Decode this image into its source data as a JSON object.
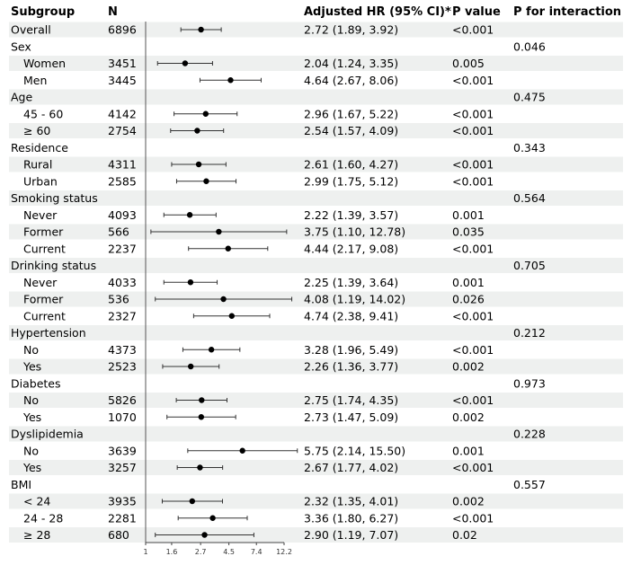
{
  "chart_data": {
    "type": "forest",
    "title": "",
    "columns": {
      "subgroup": "Subgroup",
      "n": "N",
      "hr": "Adjusted HR (95% CI)*",
      "p": "P value",
      "p_interaction": "P for interaction"
    },
    "x_scale": "log",
    "xlim": [
      1,
      12.2
    ],
    "x_ticks": [
      1,
      1.6,
      2.7,
      4.5,
      7.4,
      12.2
    ],
    "x_tick_labels": [
      "1",
      "1.6",
      "2.7",
      "4.5",
      "7.4",
      "12.2"
    ],
    "rows": [
      {
        "label": "Overall",
        "level": 0,
        "n": "6896",
        "hr": 2.72,
        "lo": 1.89,
        "hi": 3.92,
        "hr_text": "2.72 (1.89, 3.92)",
        "p": "<0.001",
        "p_int": ""
      },
      {
        "label": "Sex",
        "level": 0,
        "n": "",
        "hr": null,
        "hr_text": "",
        "p": "",
        "p_int": "0.046"
      },
      {
        "label": "Women",
        "level": 1,
        "n": "3451",
        "hr": 2.04,
        "lo": 1.24,
        "hi": 3.35,
        "hr_text": "2.04 (1.24, 3.35)",
        "p": "0.005",
        "p_int": ""
      },
      {
        "label": "Men",
        "level": 1,
        "n": "3445",
        "hr": 4.64,
        "lo": 2.67,
        "hi": 8.06,
        "hr_text": "4.64 (2.67, 8.06)",
        "p": "<0.001",
        "p_int": ""
      },
      {
        "label": "Age",
        "level": 0,
        "n": "",
        "hr": null,
        "hr_text": "",
        "p": "",
        "p_int": "0.475"
      },
      {
        "label": "45 - 60",
        "level": 1,
        "n": "4142",
        "hr": 2.96,
        "lo": 1.67,
        "hi": 5.22,
        "hr_text": "2.96 (1.67, 5.22)",
        "p": "<0.001",
        "p_int": ""
      },
      {
        "label": "≥ 60",
        "level": 1,
        "n": "2754",
        "hr": 2.54,
        "lo": 1.57,
        "hi": 4.09,
        "hr_text": "2.54 (1.57, 4.09)",
        "p": "<0.001",
        "p_int": ""
      },
      {
        "label": "Residence",
        "level": 0,
        "n": "",
        "hr": null,
        "hr_text": "",
        "p": "",
        "p_int": "0.343"
      },
      {
        "label": "Rural",
        "level": 1,
        "n": "4311",
        "hr": 2.61,
        "lo": 1.6,
        "hi": 4.27,
        "hr_text": "2.61 (1.60, 4.27)",
        "p": "<0.001",
        "p_int": ""
      },
      {
        "label": "Urban",
        "level": 1,
        "n": "2585",
        "hr": 2.99,
        "lo": 1.75,
        "hi": 5.12,
        "hr_text": "2.99 (1.75, 5.12)",
        "p": "<0.001",
        "p_int": ""
      },
      {
        "label": "Smoking status",
        "level": 0,
        "n": "",
        "hr": null,
        "hr_text": "",
        "p": "",
        "p_int": "0.564"
      },
      {
        "label": "Never",
        "level": 1,
        "n": "4093",
        "hr": 2.22,
        "lo": 1.39,
        "hi": 3.57,
        "hr_text": "2.22 (1.39, 3.57)",
        "p": "0.001",
        "p_int": ""
      },
      {
        "label": "Former",
        "level": 1,
        "n": "566",
        "hr": 3.75,
        "lo": 1.1,
        "hi": 12.78,
        "hr_text": "3.75 (1.10, 12.78)",
        "p": "0.035",
        "p_int": ""
      },
      {
        "label": "Current",
        "level": 1,
        "n": "2237",
        "hr": 4.44,
        "lo": 2.17,
        "hi": 9.08,
        "hr_text": "4.44 (2.17, 9.08)",
        "p": "<0.001",
        "p_int": ""
      },
      {
        "label": "Drinking status",
        "level": 0,
        "n": "",
        "hr": null,
        "hr_text": "",
        "p": "",
        "p_int": "0.705"
      },
      {
        "label": "Never",
        "level": 1,
        "n": "4033",
        "hr": 2.25,
        "lo": 1.39,
        "hi": 3.64,
        "hr_text": "2.25 (1.39, 3.64)",
        "p": "0.001",
        "p_int": ""
      },
      {
        "label": "Former",
        "level": 1,
        "n": "536",
        "hr": 4.08,
        "lo": 1.19,
        "hi": 14.02,
        "hr_text": "4.08 (1.19, 14.02)",
        "p": "0.026",
        "p_int": ""
      },
      {
        "label": "Current",
        "level": 1,
        "n": "2327",
        "hr": 4.74,
        "lo": 2.38,
        "hi": 9.41,
        "hr_text": "4.74 (2.38, 9.41)",
        "p": "<0.001",
        "p_int": ""
      },
      {
        "label": "Hypertension",
        "level": 0,
        "n": "",
        "hr": null,
        "hr_text": "",
        "p": "",
        "p_int": "0.212"
      },
      {
        "label": "No",
        "level": 1,
        "n": "4373",
        "hr": 3.28,
        "lo": 1.96,
        "hi": 5.49,
        "hr_text": "3.28 (1.96, 5.49)",
        "p": "<0.001",
        "p_int": ""
      },
      {
        "label": "Yes",
        "level": 1,
        "n": "2523",
        "hr": 2.26,
        "lo": 1.36,
        "hi": 3.77,
        "hr_text": "2.26 (1.36, 3.77)",
        "p": "0.002",
        "p_int": ""
      },
      {
        "label": "Diabetes",
        "level": 0,
        "n": "",
        "hr": null,
        "hr_text": "",
        "p": "",
        "p_int": "0.973"
      },
      {
        "label": "No",
        "level": 1,
        "n": "5826",
        "hr": 2.75,
        "lo": 1.74,
        "hi": 4.35,
        "hr_text": "2.75 (1.74, 4.35)",
        "p": "<0.001",
        "p_int": ""
      },
      {
        "label": "Yes",
        "level": 1,
        "n": "1070",
        "hr": 2.73,
        "lo": 1.47,
        "hi": 5.09,
        "hr_text": "2.73 (1.47, 5.09)",
        "p": "0.002",
        "p_int": ""
      },
      {
        "label": "Dyslipidemia",
        "level": 0,
        "n": "",
        "hr": null,
        "hr_text": "",
        "p": "",
        "p_int": "0.228"
      },
      {
        "label": "No",
        "level": 1,
        "n": "3639",
        "hr": 5.75,
        "lo": 2.14,
        "hi": 15.5,
        "hr_text": "5.75 (2.14, 15.50)",
        "p": "0.001",
        "p_int": ""
      },
      {
        "label": "Yes",
        "level": 1,
        "n": "3257",
        "hr": 2.67,
        "lo": 1.77,
        "hi": 4.02,
        "hr_text": "2.67 (1.77, 4.02)",
        "p": "<0.001",
        "p_int": ""
      },
      {
        "label": "BMI",
        "level": 0,
        "n": "",
        "hr": null,
        "hr_text": "",
        "p": "",
        "p_int": "0.557"
      },
      {
        "label": "< 24",
        "level": 1,
        "n": "3935",
        "hr": 2.32,
        "lo": 1.35,
        "hi": 4.01,
        "hr_text": "2.32 (1.35, 4.01)",
        "p": "0.002",
        "p_int": ""
      },
      {
        "label": "24 - 28",
        "level": 1,
        "n": "2281",
        "hr": 3.36,
        "lo": 1.8,
        "hi": 6.27,
        "hr_text": "3.36 (1.80, 6.27)",
        "p": "<0.001",
        "p_int": ""
      },
      {
        "label": "≥ 28",
        "level": 1,
        "n": "680",
        "hr": 2.9,
        "lo": 1.19,
        "hi": 7.07,
        "hr_text": "2.90 (1.19, 7.07)",
        "p": "0.02",
        "p_int": ""
      }
    ]
  }
}
